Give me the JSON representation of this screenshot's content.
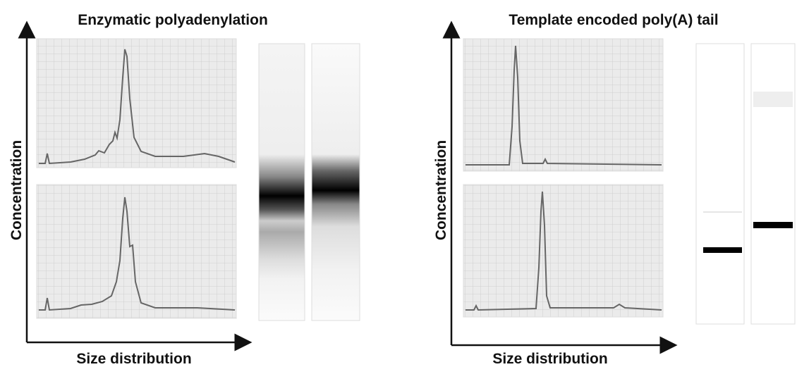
{
  "panels": [
    {
      "title": "Enzymatic polyadenylation",
      "y_label": "Concentration",
      "x_label": "Size distribution"
    },
    {
      "title": "Template encoded poly(A) tail",
      "y_label": "Concentration",
      "x_label": "Size distribution"
    }
  ]
}
